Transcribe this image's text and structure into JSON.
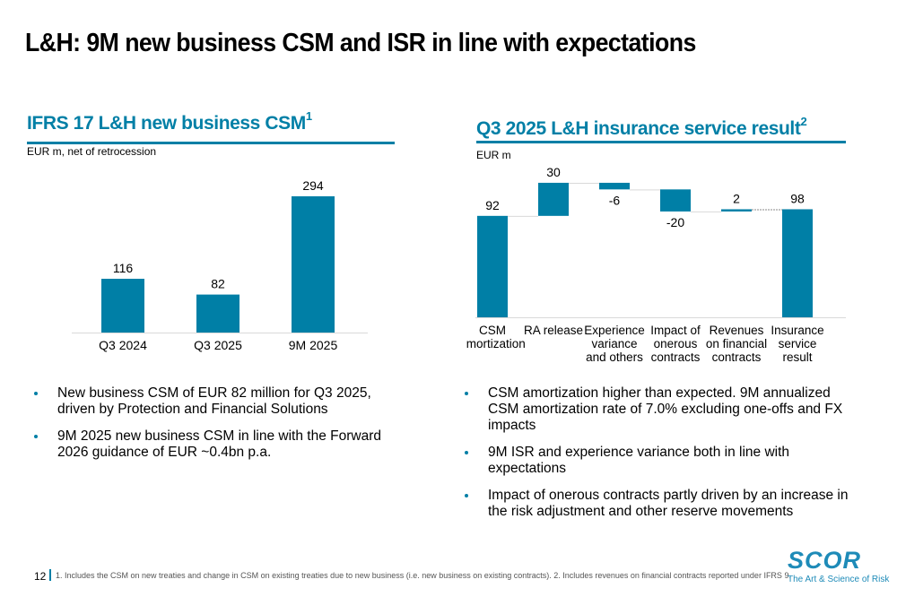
{
  "page": {
    "title": "L&H: 9M new business CSM and ISR in line with expectations",
    "page_number": "12",
    "footnote": "1. Includes the CSM on new treaties and change in CSM on existing treaties due to new business (i.e. new business on existing contracts). 2. Includes revenues on financial contracts reported under IFRS 9.",
    "accent_color": "#007fa6",
    "bar_color": "#007fa6"
  },
  "left": {
    "title": "IFRS 17 L&H new business CSM",
    "title_sup": "1",
    "unit": "EUR m, net of retrocession",
    "bullets": [
      "New business CSM of EUR 82 million for Q3 2025, driven by Protection and Financial Solutions",
      "9M 2025 new business CSM in line with the Forward 2026 guidance of EUR ~0.4bn p.a."
    ]
  },
  "right": {
    "title": "Q3 2025 L&H insurance service result",
    "title_sup": "2",
    "unit": "EUR m",
    "bullets": [
      "CSM amortization higher than expected. 9M annualized CSM amortization rate of 7.0% excluding one-offs and FX impacts",
      "9M ISR and experience variance both in line with expectations",
      "Impact of onerous contracts partly driven by an increase in the risk adjustment and other reserve movements"
    ]
  },
  "logo": {
    "word": "SCOR",
    "tagline": "The Art & Science of Risk"
  },
  "chart_data": [
    {
      "type": "bar",
      "title": "IFRS 17 L&H new business CSM",
      "ylabel": "EUR m, net of retrocession",
      "xlabel": "",
      "categories": [
        "Q3 2024",
        "Q3 2025",
        "9M 2025"
      ],
      "values": [
        116,
        82,
        294
      ],
      "labels": [
        "116",
        "82",
        "294"
      ],
      "ylim": [
        0,
        300
      ],
      "grid": false
    },
    {
      "type": "bar",
      "subtype": "waterfall",
      "title": "Q3 2025 L&H insurance service result",
      "ylabel": "EUR m",
      "xlabel": "",
      "categories": [
        [
          "CSM",
          "amortization"
        ],
        [
          "RA release"
        ],
        [
          "Experience",
          "variance",
          "and others"
        ],
        [
          "Impact of",
          "onerous",
          "contracts"
        ],
        [
          "Revenues",
          "on financial",
          "contracts"
        ],
        [
          "Insurance",
          "service",
          "result"
        ]
      ],
      "values": [
        92,
        30,
        -6,
        -20,
        2,
        98
      ],
      "kinds": [
        "total",
        "delta",
        "delta",
        "delta",
        "delta",
        "total"
      ],
      "labels": [
        "92",
        "30",
        "-6",
        "-20",
        "2",
        "98"
      ],
      "ylim": [
        0,
        125
      ],
      "grid": false
    }
  ]
}
